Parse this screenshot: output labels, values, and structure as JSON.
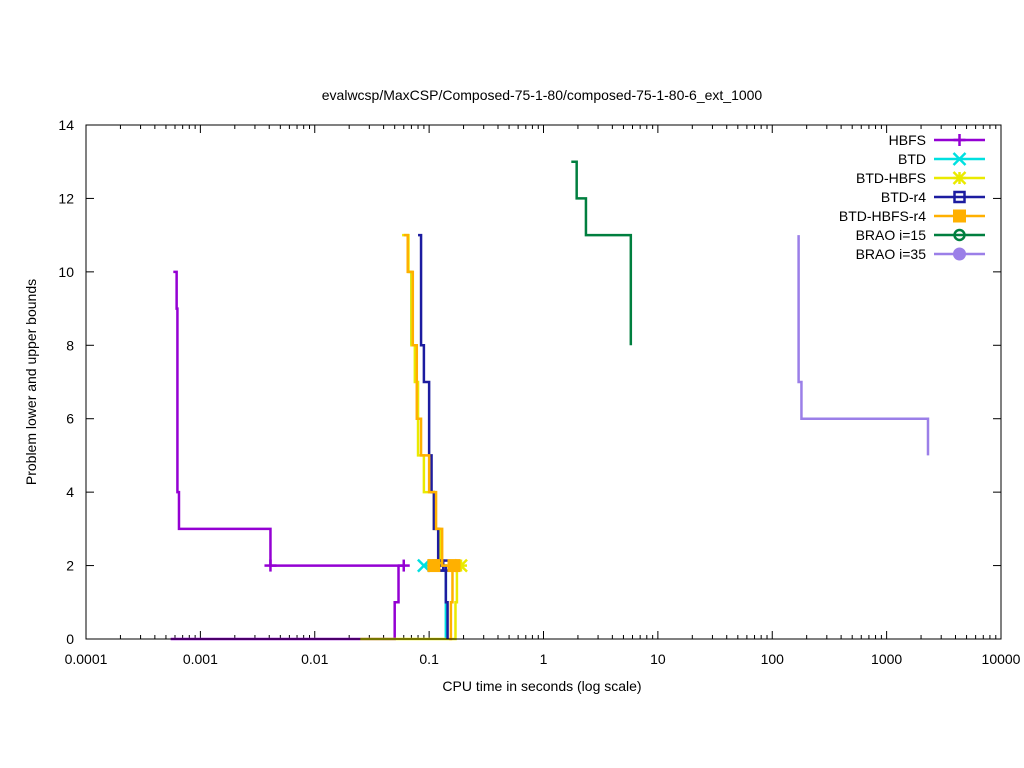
{
  "chart_data": {
    "type": "line",
    "title": "evalwcsp/MaxCSP/Composed-75-1-80/composed-75-1-80-6_ext_1000",
    "xlabel": "CPU time in seconds (log scale)",
    "ylabel": "Problem lower and upper bounds",
    "x_scale": "log",
    "xlim": [
      0.0001,
      10000
    ],
    "ylim": [
      0,
      14
    ],
    "x_ticks": [
      {
        "value": 0.0001,
        "label": "0.0001"
      },
      {
        "value": 0.001,
        "label": "0.001"
      },
      {
        "value": 0.01,
        "label": "0.01"
      },
      {
        "value": 0.1,
        "label": "0.1"
      },
      {
        "value": 1,
        "label": "1"
      },
      {
        "value": 10,
        "label": "10"
      },
      {
        "value": 100,
        "label": "100"
      },
      {
        "value": 1000,
        "label": "1000"
      },
      {
        "value": 10000,
        "label": "10000"
      }
    ],
    "y_ticks": [
      {
        "value": 0,
        "label": "0"
      },
      {
        "value": 2,
        "label": "2"
      },
      {
        "value": 4,
        "label": "4"
      },
      {
        "value": 6,
        "label": "6"
      },
      {
        "value": 8,
        "label": "8"
      },
      {
        "value": 10,
        "label": "10"
      },
      {
        "value": 12,
        "label": "12"
      },
      {
        "value": 14,
        "label": "14"
      }
    ],
    "grid": false,
    "legend_position": "top-right",
    "series": [
      {
        "name": "HBFS",
        "color": "#9400d3",
        "marker": "plus",
        "upper": [
          [
            0.00058,
            10
          ],
          [
            0.00062,
            9
          ],
          [
            0.00063,
            4
          ],
          [
            0.00065,
            3
          ],
          [
            0.0041,
            2
          ],
          [
            0.06,
            2
          ]
        ],
        "lower": [
          [
            0.00055,
            0
          ],
          [
            0.025,
            0
          ],
          [
            0.05,
            1
          ],
          [
            0.054,
            2
          ]
        ],
        "markers": [
          [
            0.0041,
            2
          ],
          [
            0.06,
            2
          ]
        ]
      },
      {
        "name": "BTD",
        "color": "#00e0e0",
        "marker": "x",
        "upper": [
          [
            0.066,
            10
          ],
          [
            0.07,
            8
          ]
        ],
        "lower": [
          [
            0.09,
            2
          ],
          [
            0.14,
            0
          ]
        ],
        "markers": [
          [
            0.09,
            2
          ]
        ]
      },
      {
        "name": "BTD-HBFS",
        "color": "#eaea00",
        "marker": "star",
        "upper": [
          [
            0.058,
            11
          ],
          [
            0.066,
            10
          ],
          [
            0.07,
            8
          ],
          [
            0.075,
            7
          ],
          [
            0.08,
            5
          ],
          [
            0.09,
            4
          ],
          [
            0.11,
            3
          ],
          [
            0.125,
            2
          ],
          [
            0.19,
            2
          ]
        ],
        "lower": [
          [
            0.025,
            0
          ],
          [
            0.16,
            0
          ],
          [
            0.17,
            1
          ],
          [
            0.175,
            2
          ]
        ],
        "markers": [
          [
            0.19,
            2
          ]
        ]
      },
      {
        "name": "BTD-r4",
        "color": "#1c1ca0",
        "marker": "square",
        "upper": [
          [
            0.08,
            11
          ],
          [
            0.085,
            8
          ],
          [
            0.09,
            7
          ],
          [
            0.1,
            5
          ],
          [
            0.105,
            4
          ],
          [
            0.11,
            3
          ],
          [
            0.12,
            2
          ],
          [
            0.135,
            2
          ]
        ],
        "lower": [
          [
            0.12,
            2
          ],
          [
            0.14,
            1
          ],
          [
            0.145,
            0
          ]
        ],
        "markers": [
          [
            0.12,
            2
          ],
          [
            0.135,
            2
          ]
        ]
      },
      {
        "name": "BTD-HBFS-r4",
        "color": "#ffb000",
        "marker": "filled-square",
        "upper": [
          [
            0.06,
            11
          ],
          [
            0.065,
            10
          ],
          [
            0.072,
            8
          ],
          [
            0.078,
            6
          ],
          [
            0.085,
            5
          ],
          [
            0.1,
            4
          ],
          [
            0.115,
            3
          ],
          [
            0.13,
            2
          ],
          [
            0.16,
            2
          ]
        ],
        "lower": [
          [
            0.15,
            0
          ],
          [
            0.155,
            1
          ],
          [
            0.16,
            2
          ]
        ],
        "markers": [
          [
            0.11,
            2
          ],
          [
            0.165,
            2
          ]
        ]
      },
      {
        "name": "BRAO i=15",
        "color": "#007f3f",
        "marker": "circle",
        "upper": [
          [
            1.75,
            13
          ],
          [
            1.95,
            12
          ],
          [
            2.35,
            11
          ],
          [
            5.8,
            11
          ],
          [
            5.8,
            8
          ]
        ],
        "lower": [],
        "markers": []
      },
      {
        "name": "BRAO i=35",
        "color": "#9b7fe8",
        "marker": "filled-circle",
        "upper": [
          [
            170,
            11
          ],
          [
            170,
            7
          ],
          [
            180,
            6
          ],
          [
            2300,
            6
          ],
          [
            2300,
            5
          ]
        ],
        "lower": [],
        "markers": []
      }
    ]
  }
}
